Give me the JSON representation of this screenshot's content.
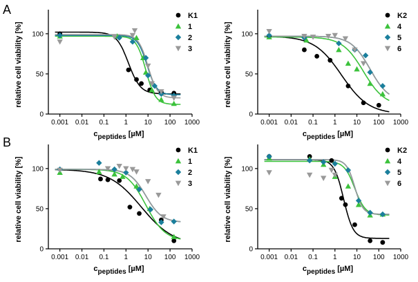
{
  "panel_letters": [
    "A",
    "B"
  ],
  "chart_data": [
    {
      "type": "scatter",
      "panel": "A",
      "xlabel": {
        "main": "c",
        "sub": "peptides",
        "unit": " [µM]"
      },
      "ylabel": "relative cell viability [%]",
      "xscale": "log",
      "xlim": [
        0.0003,
        1000
      ],
      "ylim": [
        0,
        130
      ],
      "xticks": [
        0.001,
        0.01,
        0.1,
        1,
        10,
        100,
        1000
      ],
      "xtick_labels": [
        "0.001",
        "0.01",
        "0.1",
        "1",
        "10",
        "100",
        "1000"
      ],
      "yticks": [
        0,
        50,
        100
      ],
      "legend_position": "top-right",
      "series": [
        {
          "name": "K1",
          "color": "#000000",
          "marker": "circle",
          "points": [
            [
              0.001,
              100
            ],
            [
              1.3,
              55
            ],
            [
              3,
              43
            ],
            [
              5,
              38
            ],
            [
              12,
              30
            ],
            [
              40,
              27
            ],
            [
              150,
              26
            ]
          ],
          "curve": {
            "top": 102,
            "bottom": 25,
            "ec50": 1.3,
            "hill": 1.6
          }
        },
        {
          "name": "1",
          "color": "#3cc23c",
          "marker": "triangle-up",
          "points": [
            [
              0.001,
              97
            ],
            [
              0.4,
              97
            ],
            [
              3,
              95
            ],
            [
              6,
              70
            ],
            [
              8,
              52
            ],
            [
              15,
              30
            ],
            [
              40,
              18
            ],
            [
              150,
              13
            ]
          ],
          "curve": {
            "top": 97,
            "bottom": 12,
            "ec50": 8,
            "hill": 2.0
          }
        },
        {
          "name": "2",
          "color": "#1b7f9c",
          "marker": "diamond",
          "points": [
            [
              0.001,
              98
            ],
            [
              0.5,
              95
            ],
            [
              2,
              90
            ],
            [
              8,
              70
            ],
            [
              10,
              48
            ],
            [
              20,
              35
            ],
            [
              40,
              25
            ],
            [
              150,
              23
            ]
          ],
          "curve": {
            "top": 98,
            "bottom": 24,
            "ec50": 9,
            "hill": 2.0
          }
        },
        {
          "name": "3",
          "color": "#999999",
          "marker": "triangle-down",
          "points": [
            [
              0.001,
              90
            ],
            [
              0.3,
              96
            ],
            [
              2,
              98
            ],
            [
              2.5,
              104
            ],
            [
              10,
              60
            ],
            [
              15,
              38
            ],
            [
              40,
              28
            ],
            [
              150,
              20
            ]
          ],
          "curve": {
            "top": 99,
            "bottom": 20,
            "ec50": 10,
            "hill": 2.0
          }
        }
      ]
    },
    {
      "type": "scatter",
      "panel": "A-right",
      "xlabel": {
        "main": "c",
        "sub": "peptides",
        "unit": " [µM]"
      },
      "ylabel": "relative cell viability [%]",
      "xscale": "log",
      "xlim": [
        0.0003,
        1000
      ],
      "ylim": [
        0,
        130
      ],
      "xticks": [
        0.001,
        0.01,
        0.1,
        1,
        10,
        100,
        1000
      ],
      "xtick_labels": [
        "0.001",
        "0.01",
        "0.1",
        "1",
        "10",
        "100",
        "1000"
      ],
      "yticks": [
        0,
        50,
        100
      ],
      "legend_position": "top-right",
      "series": [
        {
          "name": "K2",
          "color": "#000000",
          "marker": "circle",
          "points": [
            [
              0.001,
              97
            ],
            [
              0.04,
              80
            ],
            [
              0.15,
              72
            ],
            [
              0.6,
              67
            ],
            [
              4,
              35
            ],
            [
              20,
              14
            ],
            [
              100,
              11
            ]
          ],
          "curve": {
            "top": 97,
            "bottom": 0,
            "ec50": 2,
            "hill": 0.7
          }
        },
        {
          "name": "4",
          "color": "#3cc23c",
          "marker": "triangle-up",
          "points": [
            [
              0.001,
              96
            ],
            [
              0.05,
              92
            ],
            [
              1.5,
              80
            ],
            [
              4,
              63
            ],
            [
              10,
              56
            ],
            [
              40,
              38
            ],
            [
              150,
              25
            ]
          ],
          "curve": {
            "top": 96,
            "bottom": 10,
            "ec50": 20,
            "hill": 0.9
          }
        },
        {
          "name": "5",
          "color": "#1b7f9c",
          "marker": "diamond",
          "points": [
            [
              0.001,
              98
            ],
            [
              0.04,
              95
            ],
            [
              1.5,
              88
            ],
            [
              8,
              80
            ],
            [
              25,
              73
            ],
            [
              40,
              52
            ],
            [
              150,
              35
            ]
          ],
          "curve": {
            "top": 97,
            "bottom": 15,
            "ec50": 40,
            "hill": 1.0
          }
        },
        {
          "name": "6",
          "color": "#999999",
          "marker": "triangle-down",
          "points": [
            [
              0.001,
              103
            ],
            [
              0.04,
              97
            ],
            [
              0.1,
              96
            ],
            [
              0.5,
              97
            ],
            [
              1,
              98
            ],
            [
              3,
              94
            ],
            [
              8,
              80
            ],
            [
              20,
              63
            ]
          ],
          "curve": {
            "top": 97,
            "bottom": 15,
            "ec50": 40,
            "hill": 1.0
          }
        }
      ]
    },
    {
      "type": "scatter",
      "panel": "B",
      "xlabel": {
        "main": "c",
        "sub": "peptides",
        "unit": " [µM]"
      },
      "ylabel": "relative cell viability [%]",
      "xscale": "log",
      "xlim": [
        0.0003,
        1000
      ],
      "ylim": [
        0,
        130
      ],
      "xticks": [
        0.001,
        0.01,
        0.1,
        1,
        10,
        100,
        1000
      ],
      "xtick_labels": [
        "0.001",
        "0.01",
        "0.1",
        "1",
        "10",
        "100",
        "1000"
      ],
      "yticks": [
        0,
        50,
        100
      ],
      "legend_position": "top-right",
      "series": [
        {
          "name": "K1",
          "color": "#000000",
          "marker": "circle",
          "points": [
            [
              0.07,
              87
            ],
            [
              0.15,
              86
            ],
            [
              0.5,
              85
            ],
            [
              1.5,
              52
            ],
            [
              4,
              44
            ],
            [
              40,
              36
            ],
            [
              150,
              10
            ]
          ],
          "curve": {
            "top": 99,
            "bottom": 5,
            "ec50": 5,
            "hill": 0.6
          }
        },
        {
          "name": "1",
          "color": "#3cc23c",
          "marker": "triangle-up",
          "points": [
            [
              0.001,
              95
            ],
            [
              0.06,
              96
            ],
            [
              0.3,
              93
            ],
            [
              0.7,
              90
            ],
            [
              3,
              78
            ],
            [
              12,
              50
            ],
            [
              150,
              15
            ]
          ],
          "curve": {
            "top": 99,
            "bottom": 10,
            "ec50": 8,
            "hill": 1.0
          }
        },
        {
          "name": "2",
          "color": "#1b7f9c",
          "marker": "diamond",
          "points": [
            [
              0.001,
              99
            ],
            [
              0.06,
              107
            ],
            [
              0.3,
              99
            ],
            [
              1,
              95
            ],
            [
              4,
              74
            ],
            [
              13,
              49
            ],
            [
              40,
              33
            ],
            [
              150,
              34
            ]
          ],
          "curve": {
            "top": 99,
            "bottom": 33,
            "ec50": 8,
            "hill": 1.2
          }
        },
        {
          "name": "3",
          "color": "#999999",
          "marker": "triangle-down",
          "points": [
            [
              0.001,
              98
            ],
            [
              0.15,
              100
            ],
            [
              0.5,
              103
            ],
            [
              1,
              100
            ],
            [
              2,
              99
            ],
            [
              3,
              96
            ],
            [
              10,
              84
            ],
            [
              30,
              67
            ],
            [
              50,
              40
            ]
          ],
          "curve": {
            "top": 99,
            "bottom": 33,
            "ec50": 8,
            "hill": 1.2
          }
        }
      ]
    },
    {
      "type": "scatter",
      "panel": "B-right",
      "xlabel": {
        "main": "c",
        "sub": "peptides",
        "unit": " [µM]"
      },
      "ylabel": "relative cell viability [%]",
      "xscale": "log",
      "xlim": [
        0.0003,
        1000
      ],
      "ylim": [
        0,
        130
      ],
      "xticks": [
        0.001,
        0.01,
        0.1,
        1,
        10,
        100,
        1000
      ],
      "xtick_labels": [
        "0.001",
        "0.01",
        "0.1",
        "1",
        "10",
        "100",
        "1000"
      ],
      "yticks": [
        0,
        50,
        100
      ],
      "legend_position": "top-right",
      "series": [
        {
          "name": "K2",
          "color": "#000000",
          "marker": "circle",
          "points": [
            [
              0.001,
              115
            ],
            [
              0.07,
              115
            ],
            [
              0.7,
              110
            ],
            [
              2,
              63
            ],
            [
              3,
              55
            ],
            [
              8,
              30
            ],
            [
              40,
              10
            ],
            [
              150,
              8
            ]
          ],
          "curve": {
            "top": 111,
            "bottom": 13,
            "ec50": 2.5,
            "hill": 2.0
          }
        },
        {
          "name": "4",
          "color": "#3cc23c",
          "marker": "triangle-up",
          "points": [
            [
              0.001,
              113
            ],
            [
              0.07,
              112
            ],
            [
              0.3,
              105
            ],
            [
              1,
              90
            ],
            [
              4,
              78
            ],
            [
              12,
              55
            ],
            [
              40,
              42
            ],
            [
              150,
              43
            ]
          ],
          "curve": {
            "top": 109,
            "bottom": 42,
            "ec50": 8,
            "hill": 1.8
          }
        },
        {
          "name": "5",
          "color": "#1b7f9c",
          "marker": "diamond",
          "points": [
            [
              0.001,
              115
            ],
            [
              0.07,
              110
            ],
            [
              0.3,
              108
            ],
            [
              1,
              106
            ],
            [
              4,
              98
            ],
            [
              12,
              60
            ],
            [
              40,
              45
            ],
            [
              150,
              43
            ]
          ],
          "curve": {
            "top": 111,
            "bottom": 43,
            "ec50": 8,
            "hill": 2.3
          }
        },
        {
          "name": "6",
          "color": "#999999",
          "marker": "triangle-down",
          "points": [
            [
              0.001,
              95
            ],
            [
              0.07,
              92
            ],
            [
              0.3,
              88
            ],
            [
              0.7,
              98
            ],
            [
              1,
              92
            ]
          ],
          "curve": {
            "top": 111,
            "bottom": 43,
            "ec50": 8,
            "hill": 2.3
          }
        }
      ]
    }
  ]
}
